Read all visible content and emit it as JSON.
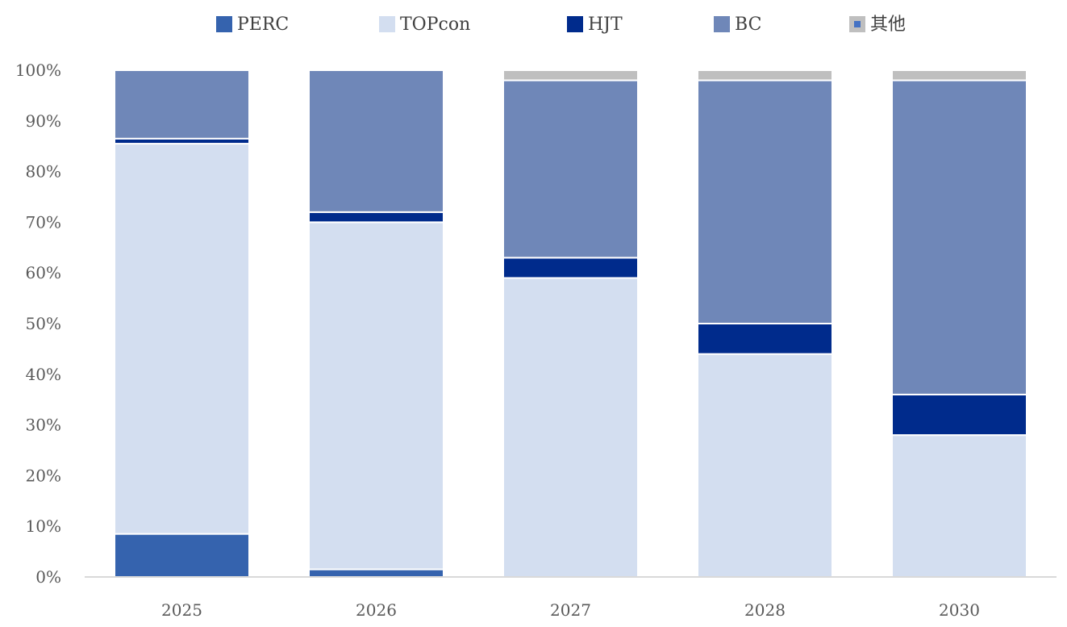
{
  "chart_data": {
    "type": "bar",
    "stacked": true,
    "percent": true,
    "categories": [
      "2025",
      "2026",
      "2027",
      "2028",
      "2030"
    ],
    "series": [
      {
        "name": "PERC",
        "color": "#3563AE",
        "values": [
          8.5,
          1.5,
          0,
          0,
          0
        ]
      },
      {
        "name": "TOPcon",
        "color": "#D3DEF0",
        "values": [
          77,
          68.5,
          59,
          44,
          28
        ]
      },
      {
        "name": "HJT",
        "color": "#002B8C",
        "values": [
          1,
          2,
          4,
          6,
          8
        ]
      },
      {
        "name": "BC",
        "color": "#6F87B8",
        "values": [
          13.5,
          28,
          35,
          48,
          62
        ]
      },
      {
        "name": "其他",
        "color": "#BFBFBF",
        "legend_marker": "#4472C4",
        "values": [
          0,
          0,
          2,
          2,
          2
        ]
      }
    ],
    "y_ticks": [
      "0%",
      "10%",
      "20%",
      "30%",
      "40%",
      "50%",
      "60%",
      "70%",
      "80%",
      "90%",
      "100%"
    ],
    "ylim": [
      0,
      100
    ],
    "grid": false,
    "legend_position": "top"
  }
}
